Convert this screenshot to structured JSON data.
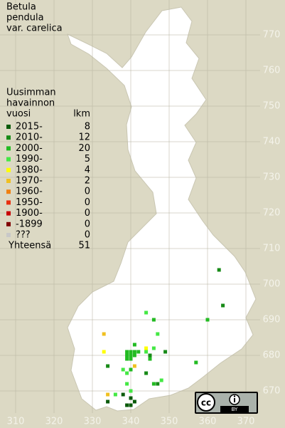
{
  "title": [
    "Betula",
    "pendula",
    "var. carelica"
  ],
  "legend": {
    "header": [
      "Uusimman",
      "havainnon",
      "vuosi"
    ],
    "count_header": "lkm",
    "rows": [
      {
        "label": "2015-",
        "count": 8,
        "color": "#0a5a0a"
      },
      {
        "label": "2010-",
        "count": 12,
        "color": "#178a17"
      },
      {
        "label": "2000-",
        "count": 20,
        "color": "#22bb22"
      },
      {
        "label": "1990-",
        "count": 5,
        "color": "#44e844"
      },
      {
        "label": "1980-",
        "count": 4,
        "color": "#ffff00"
      },
      {
        "label": "1970-",
        "count": 2,
        "color": "#f0c020"
      },
      {
        "label": "1960-",
        "count": 0,
        "color": "#f08010"
      },
      {
        "label": "1950-",
        "count": 0,
        "color": "#e83010"
      },
      {
        "label": "1900-",
        "count": 0,
        "color": "#c80000"
      },
      {
        "label": "-1899",
        "count": 0,
        "color": "#800000"
      },
      {
        "label": "???",
        "count": 0,
        "color": "#c8c8c8"
      }
    ],
    "total_label": "Yhteensä",
    "total": 51
  },
  "axes": {
    "x_ticks": [
      310,
      320,
      330,
      340,
      350,
      360,
      370
    ],
    "y_ticks": [
      670,
      680,
      690,
      700,
      710,
      720,
      730,
      740,
      750,
      760,
      770
    ]
  },
  "points": [
    {
      "x": 363,
      "y": 704,
      "class": 1
    },
    {
      "x": 364,
      "y": 694,
      "class": 1
    },
    {
      "x": 360,
      "y": 690,
      "class": 2
    },
    {
      "x": 344,
      "y": 692,
      "class": 3
    },
    {
      "x": 346,
      "y": 690,
      "class": 2
    },
    {
      "x": 347,
      "y": 686,
      "class": 3
    },
    {
      "x": 341,
      "y": 683,
      "class": 2
    },
    {
      "x": 333,
      "y": 686,
      "class": 5
    },
    {
      "x": 333,
      "y": 681,
      "class": 4
    },
    {
      "x": 339,
      "y": 681,
      "class": 2
    },
    {
      "x": 340,
      "y": 681,
      "class": 2
    },
    {
      "x": 341,
      "y": 681,
      "class": 2
    },
    {
      "x": 342,
      "y": 681,
      "class": 2
    },
    {
      "x": 339,
      "y": 680,
      "class": 2
    },
    {
      "x": 340,
      "y": 680,
      "class": 2
    },
    {
      "x": 341,
      "y": 680,
      "class": 2
    },
    {
      "x": 339,
      "y": 679,
      "class": 2
    },
    {
      "x": 340,
      "y": 679,
      "class": 2
    },
    {
      "x": 344,
      "y": 682,
      "class": 4
    },
    {
      "x": 344,
      "y": 681,
      "class": 3
    },
    {
      "x": 345,
      "y": 680,
      "class": 1
    },
    {
      "x": 346,
      "y": 682,
      "class": 3
    },
    {
      "x": 349,
      "y": 681,
      "class": 1
    },
    {
      "x": 345,
      "y": 679,
      "class": 2
    },
    {
      "x": 341,
      "y": 677,
      "class": 5
    },
    {
      "x": 340,
      "y": 676,
      "class": 2
    },
    {
      "x": 339,
      "y": 675,
      "class": 3
    },
    {
      "x": 334,
      "y": 677,
      "class": 1
    },
    {
      "x": 338,
      "y": 676,
      "class": 3
    },
    {
      "x": 344,
      "y": 675,
      "class": 1
    },
    {
      "x": 348,
      "y": 673,
      "class": 3
    },
    {
      "x": 357,
      "y": 678,
      "class": 2
    },
    {
      "x": 347,
      "y": 672,
      "class": 1
    },
    {
      "x": 339,
      "y": 672,
      "class": 3
    },
    {
      "x": 340,
      "y": 670,
      "class": 3
    },
    {
      "x": 336,
      "y": 669,
      "class": 3
    },
    {
      "x": 338,
      "y": 669,
      "class": 0
    },
    {
      "x": 340,
      "y": 668,
      "class": 0
    },
    {
      "x": 341,
      "y": 667,
      "class": 0
    },
    {
      "x": 339,
      "y": 666,
      "class": 0
    },
    {
      "x": 340,
      "y": 666,
      "class": 0
    },
    {
      "x": 334,
      "y": 669,
      "class": 5
    },
    {
      "x": 334,
      "y": 667,
      "class": 0
    },
    {
      "x": 346,
      "y": 672,
      "class": 2
    }
  ],
  "license": {
    "cc": "cc",
    "by": "BY"
  }
}
